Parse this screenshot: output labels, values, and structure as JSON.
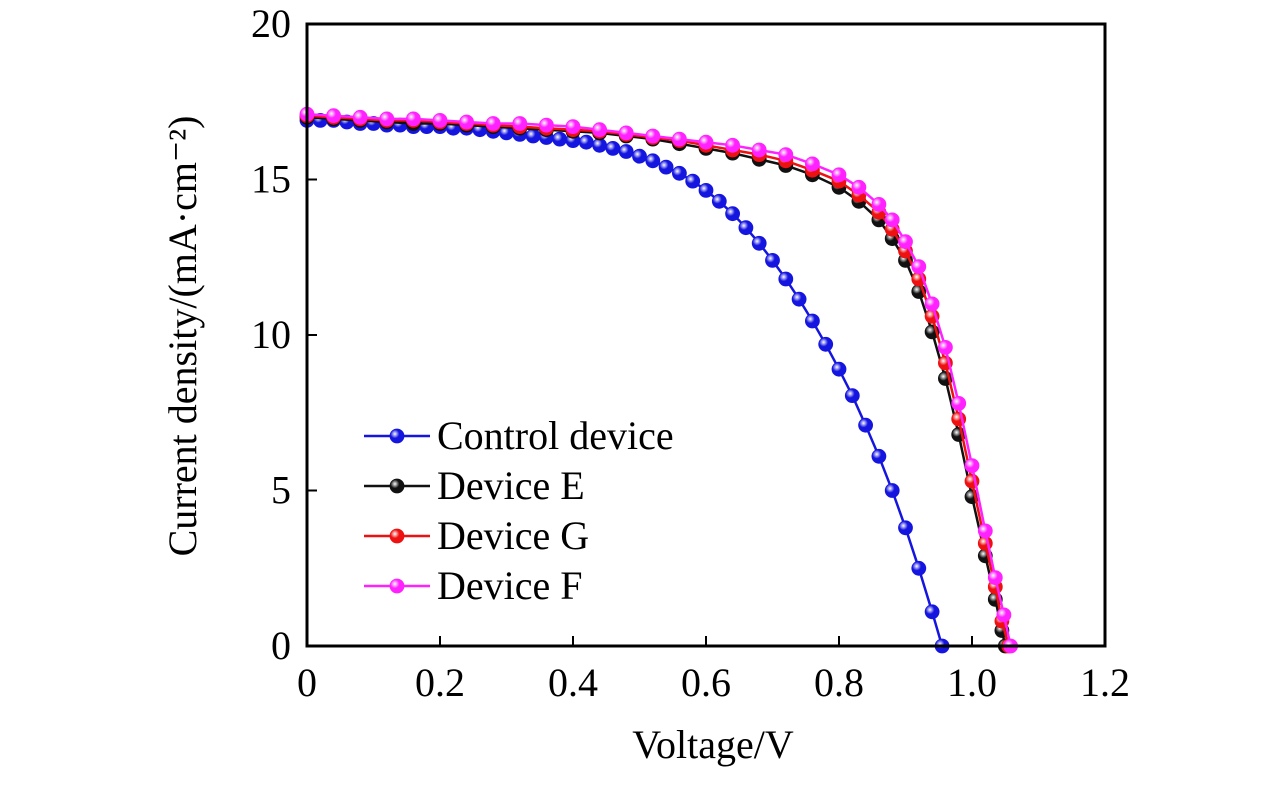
{
  "chart_data": {
    "type": "line",
    "title": "",
    "xlabel": "Voltage/V",
    "ylabel": "Current density/(mA·cm⁻²)",
    "xlim": [
      0,
      1.2
    ],
    "ylim": [
      0,
      20
    ],
    "xticks": [
      0,
      0.2,
      0.4,
      0.6,
      0.8,
      1.0,
      1.2
    ],
    "xtick_labels": [
      "0",
      "0.2",
      "0.4",
      "0.6",
      "0.8",
      "1.0",
      "1.2"
    ],
    "yticks": [
      0,
      5,
      10,
      15,
      20
    ],
    "ytick_labels": [
      "0",
      "5",
      "10",
      "15",
      "20"
    ],
    "grid": false,
    "legend_position": "lower-left",
    "series": [
      {
        "name": "Control device",
        "color": "#1515e0",
        "x": [
          0.0,
          0.02,
          0.04,
          0.06,
          0.08,
          0.1,
          0.12,
          0.14,
          0.16,
          0.18,
          0.2,
          0.22,
          0.24,
          0.26,
          0.28,
          0.3,
          0.32,
          0.34,
          0.36,
          0.38,
          0.4,
          0.42,
          0.44,
          0.46,
          0.48,
          0.5,
          0.52,
          0.54,
          0.56,
          0.58,
          0.6,
          0.62,
          0.64,
          0.66,
          0.68,
          0.7,
          0.72,
          0.74,
          0.76,
          0.78,
          0.8,
          0.82,
          0.84,
          0.86,
          0.88,
          0.9,
          0.92,
          0.94,
          0.955
        ],
        "y": [
          16.9,
          16.9,
          16.9,
          16.85,
          16.8,
          16.8,
          16.75,
          16.75,
          16.7,
          16.7,
          16.7,
          16.65,
          16.65,
          16.6,
          16.55,
          16.5,
          16.45,
          16.4,
          16.35,
          16.3,
          16.25,
          16.2,
          16.1,
          16.0,
          15.9,
          15.75,
          15.6,
          15.4,
          15.2,
          14.95,
          14.65,
          14.3,
          13.9,
          13.45,
          12.95,
          12.4,
          11.8,
          11.15,
          10.45,
          9.7,
          8.9,
          8.05,
          7.1,
          6.1,
          5.0,
          3.8,
          2.5,
          1.1,
          0.0
        ]
      },
      {
        "name": "Device E",
        "color": "#111111",
        "x": [
          0.0,
          0.04,
          0.08,
          0.12,
          0.16,
          0.2,
          0.24,
          0.28,
          0.32,
          0.36,
          0.4,
          0.44,
          0.48,
          0.52,
          0.56,
          0.6,
          0.64,
          0.68,
          0.72,
          0.76,
          0.8,
          0.83,
          0.86,
          0.88,
          0.9,
          0.92,
          0.94,
          0.96,
          0.98,
          1.0,
          1.02,
          1.035,
          1.045,
          1.05
        ],
        "y": [
          17.0,
          16.95,
          16.9,
          16.85,
          16.8,
          16.8,
          16.75,
          16.7,
          16.65,
          16.6,
          16.55,
          16.5,
          16.4,
          16.3,
          16.15,
          16.0,
          15.85,
          15.65,
          15.45,
          15.15,
          14.75,
          14.3,
          13.7,
          13.1,
          12.4,
          11.4,
          10.1,
          8.6,
          6.8,
          4.8,
          2.9,
          1.5,
          0.5,
          0.0
        ]
      },
      {
        "name": "Device G",
        "color": "#ee1111",
        "x": [
          0.0,
          0.04,
          0.08,
          0.12,
          0.16,
          0.2,
          0.24,
          0.28,
          0.32,
          0.36,
          0.4,
          0.44,
          0.48,
          0.52,
          0.56,
          0.6,
          0.64,
          0.68,
          0.72,
          0.76,
          0.8,
          0.83,
          0.86,
          0.88,
          0.9,
          0.92,
          0.94,
          0.96,
          0.98,
          1.0,
          1.02,
          1.035,
          1.045,
          1.055
        ],
        "y": [
          17.05,
          17.0,
          16.95,
          16.9,
          16.9,
          16.85,
          16.8,
          16.75,
          16.7,
          16.65,
          16.6,
          16.55,
          16.45,
          16.35,
          16.25,
          16.1,
          15.95,
          15.8,
          15.6,
          15.3,
          14.95,
          14.5,
          13.95,
          13.4,
          12.7,
          11.8,
          10.6,
          9.1,
          7.3,
          5.3,
          3.3,
          1.9,
          0.8,
          0.0
        ]
      },
      {
        "name": "Device F",
        "color": "#ff22ff",
        "x": [
          0.0,
          0.04,
          0.08,
          0.12,
          0.16,
          0.2,
          0.24,
          0.28,
          0.32,
          0.36,
          0.4,
          0.44,
          0.48,
          0.52,
          0.56,
          0.6,
          0.64,
          0.68,
          0.72,
          0.76,
          0.8,
          0.83,
          0.86,
          0.88,
          0.9,
          0.92,
          0.94,
          0.96,
          0.98,
          1.0,
          1.02,
          1.035,
          1.048,
          1.058
        ],
        "y": [
          17.1,
          17.05,
          17.0,
          16.95,
          16.95,
          16.9,
          16.85,
          16.8,
          16.8,
          16.75,
          16.7,
          16.6,
          16.5,
          16.4,
          16.3,
          16.2,
          16.1,
          15.95,
          15.8,
          15.5,
          15.15,
          14.75,
          14.2,
          13.7,
          13.0,
          12.2,
          11.0,
          9.6,
          7.8,
          5.8,
          3.7,
          2.2,
          1.0,
          0.0
        ]
      }
    ]
  }
}
